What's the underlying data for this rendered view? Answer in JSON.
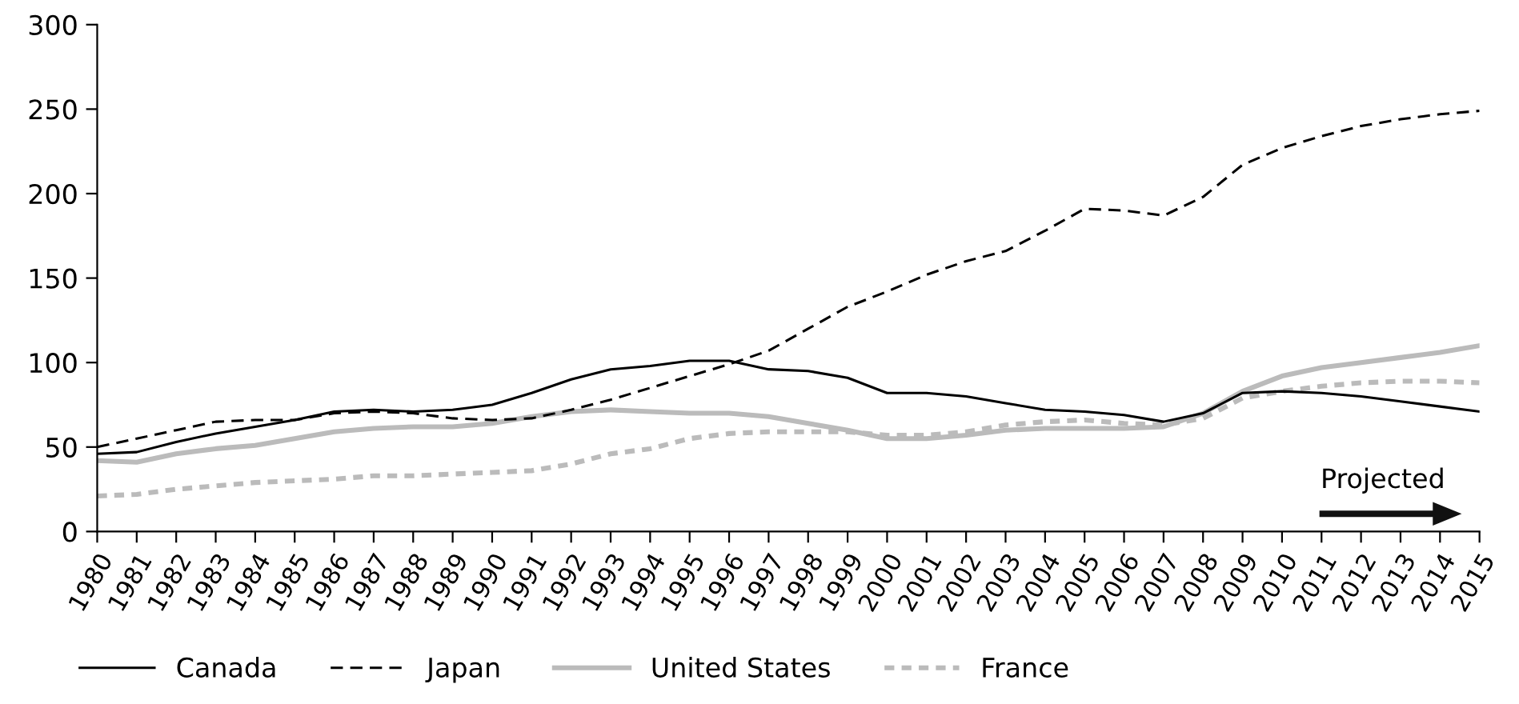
{
  "chart_data": {
    "type": "line",
    "x": [
      1980,
      1981,
      1982,
      1983,
      1984,
      1985,
      1986,
      1987,
      1988,
      1989,
      1990,
      1991,
      1992,
      1993,
      1994,
      1995,
      1996,
      1997,
      1998,
      1999,
      2000,
      2001,
      2002,
      2003,
      2004,
      2005,
      2006,
      2007,
      2008,
      2009,
      2010,
      2011,
      2012,
      2013,
      2014,
      2015
    ],
    "series": [
      {
        "name": "Canada",
        "color": "#000000",
        "line_style": "solid",
        "values": [
          46,
          47,
          53,
          58,
          62,
          66,
          71,
          72,
          71,
          72,
          75,
          82,
          90,
          96,
          98,
          101,
          101,
          96,
          95,
          91,
          82,
          82,
          80,
          76,
          72,
          71,
          69,
          65,
          70,
          82,
          83,
          82,
          80,
          77,
          74,
          71
        ]
      },
      {
        "name": "Japan",
        "color": "#000000",
        "line_style": "dashed",
        "values": [
          50,
          55,
          60,
          65,
          66,
          66,
          70,
          71,
          70,
          67,
          66,
          67,
          72,
          78,
          85,
          92,
          99,
          107,
          120,
          133,
          142,
          152,
          160,
          166,
          178,
          191,
          190,
          187,
          198,
          217,
          227,
          234,
          240,
          244,
          247,
          249
        ]
      },
      {
        "name": "United States",
        "color": "#bbbbbb",
        "line_style": "solid",
        "values": [
          42,
          41,
          46,
          49,
          51,
          55,
          59,
          61,
          62,
          62,
          64,
          68,
          71,
          72,
          71,
          70,
          70,
          68,
          64,
          60,
          55,
          55,
          57,
          60,
          61,
          61,
          61,
          62,
          70,
          83,
          92,
          97,
          100,
          103,
          106,
          110
        ]
      },
      {
        "name": "France",
        "color": "#bbbbbb",
        "line_style": "dotted",
        "values": [
          21,
          22,
          25,
          27,
          29,
          30,
          31,
          33,
          33,
          34,
          35,
          36,
          40,
          46,
          49,
          55,
          58,
          59,
          59,
          59,
          57,
          57,
          59,
          63,
          65,
          66,
          64,
          63,
          67,
          79,
          83,
          86,
          88,
          89,
          89,
          88
        ]
      }
    ],
    "xlim": [
      1980,
      2015
    ],
    "xticks": [
      1980,
      1981,
      1982,
      1983,
      1984,
      1985,
      1986,
      1987,
      1988,
      1989,
      1990,
      1991,
      1992,
      1993,
      1994,
      1995,
      1996,
      1997,
      1998,
      1999,
      2000,
      2001,
      2002,
      2003,
      2004,
      2005,
      2006,
      2007,
      2008,
      2009,
      2010,
      2011,
      2012,
      2013,
      2014,
      2015
    ],
    "ylim": [
      0,
      300
    ],
    "yticks": [
      0,
      50,
      100,
      150,
      200,
      250,
      300
    ],
    "grid": false,
    "legend": "bottom",
    "annotations": [
      "Projected"
    ]
  }
}
